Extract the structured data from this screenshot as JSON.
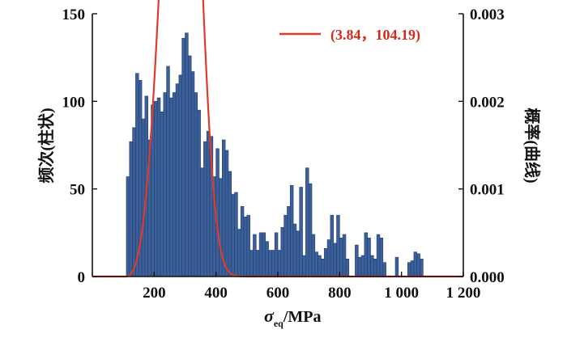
{
  "chart_data": {
    "type": "bar",
    "subtype": "histogram-with-fitted-curve",
    "x_axis": {
      "label_symbol": "σ",
      "label_subscript": "eq",
      "label_unit": "/MPa",
      "range": [
        0,
        1200
      ],
      "ticks": [
        200,
        400,
        600,
        800,
        1000,
        1200
      ],
      "tick_labels": [
        "200",
        "400",
        "600",
        "800",
        "1 000",
        "1 200"
      ]
    },
    "y_left": {
      "label": "频次(柱状)",
      "range": [
        0,
        150
      ],
      "ticks": [
        0,
        50,
        100,
        150
      ],
      "tick_labels": [
        "0",
        "50",
        "100",
        "150"
      ]
    },
    "y_right": {
      "label": "概率(曲线)",
      "range": [
        0,
        0.003
      ],
      "ticks": [
        0,
        0.001,
        0.002,
        0.003
      ],
      "tick_labels": [
        "0.000",
        "0.001",
        "0.002",
        "0.003"
      ]
    },
    "histogram": {
      "color": "#3a5f99",
      "edge_color": "#22406f",
      "bin_width": 10,
      "bins": [
        {
          "x": 115,
          "y": 57
        },
        {
          "x": 125,
          "y": 77
        },
        {
          "x": 135,
          "y": 85
        },
        {
          "x": 145,
          "y": 116
        },
        {
          "x": 155,
          "y": 112
        },
        {
          "x": 165,
          "y": 90
        },
        {
          "x": 175,
          "y": 103
        },
        {
          "x": 185,
          "y": 78
        },
        {
          "x": 195,
          "y": 98
        },
        {
          "x": 205,
          "y": 100
        },
        {
          "x": 215,
          "y": 102
        },
        {
          "x": 225,
          "y": 94
        },
        {
          "x": 235,
          "y": 105
        },
        {
          "x": 245,
          "y": 120
        },
        {
          "x": 255,
          "y": 102
        },
        {
          "x": 265,
          "y": 105
        },
        {
          "x": 275,
          "y": 110
        },
        {
          "x": 285,
          "y": 115
        },
        {
          "x": 295,
          "y": 136
        },
        {
          "x": 305,
          "y": 139
        },
        {
          "x": 315,
          "y": 126
        },
        {
          "x": 325,
          "y": 117
        },
        {
          "x": 335,
          "y": 105
        },
        {
          "x": 345,
          "y": 95
        },
        {
          "x": 355,
          "y": 62
        },
        {
          "x": 365,
          "y": 77
        },
        {
          "x": 375,
          "y": 83
        },
        {
          "x": 385,
          "y": 80
        },
        {
          "x": 395,
          "y": 57
        },
        {
          "x": 405,
          "y": 73
        },
        {
          "x": 415,
          "y": 56
        },
        {
          "x": 425,
          "y": 78
        },
        {
          "x": 435,
          "y": 72
        },
        {
          "x": 445,
          "y": 60
        },
        {
          "x": 455,
          "y": 47
        },
        {
          "x": 465,
          "y": 48
        },
        {
          "x": 475,
          "y": 27
        },
        {
          "x": 485,
          "y": 40
        },
        {
          "x": 495,
          "y": 34
        },
        {
          "x": 505,
          "y": 35
        },
        {
          "x": 515,
          "y": 15
        },
        {
          "x": 525,
          "y": 24
        },
        {
          "x": 535,
          "y": 15
        },
        {
          "x": 545,
          "y": 25
        },
        {
          "x": 555,
          "y": 25
        },
        {
          "x": 565,
          "y": 20
        },
        {
          "x": 575,
          "y": 15
        },
        {
          "x": 585,
          "y": 15
        },
        {
          "x": 595,
          "y": 25
        },
        {
          "x": 605,
          "y": 15
        },
        {
          "x": 615,
          "y": 28
        },
        {
          "x": 625,
          "y": 35
        },
        {
          "x": 635,
          "y": 40
        },
        {
          "x": 645,
          "y": 52
        },
        {
          "x": 655,
          "y": 30
        },
        {
          "x": 665,
          "y": 26
        },
        {
          "x": 675,
          "y": 51
        },
        {
          "x": 685,
          "y": 12
        },
        {
          "x": 695,
          "y": 62
        },
        {
          "x": 705,
          "y": 53
        },
        {
          "x": 715,
          "y": 24
        },
        {
          "x": 725,
          "y": 14
        },
        {
          "x": 735,
          "y": 12
        },
        {
          "x": 745,
          "y": 10
        },
        {
          "x": 755,
          "y": 16
        },
        {
          "x": 765,
          "y": 21
        },
        {
          "x": 775,
          "y": 35
        },
        {
          "x": 785,
          "y": 19
        },
        {
          "x": 795,
          "y": 35
        },
        {
          "x": 805,
          "y": 22
        },
        {
          "x": 815,
          "y": 24
        },
        {
          "x": 825,
          "y": 10
        },
        {
          "x": 855,
          "y": 18
        },
        {
          "x": 865,
          "y": 11
        },
        {
          "x": 875,
          "y": 12
        },
        {
          "x": 885,
          "y": 25
        },
        {
          "x": 895,
          "y": 22
        },
        {
          "x": 905,
          "y": 12
        },
        {
          "x": 915,
          "y": 10
        },
        {
          "x": 925,
          "y": 24
        },
        {
          "x": 935,
          "y": 22
        },
        {
          "x": 945,
          "y": 8
        },
        {
          "x": 985,
          "y": 11
        },
        {
          "x": 1025,
          "y": 8
        },
        {
          "x": 1035,
          "y": 9
        },
        {
          "x": 1045,
          "y": 14
        },
        {
          "x": 1055,
          "y": 13
        },
        {
          "x": 1065,
          "y": 10
        }
      ]
    },
    "curve": {
      "type": "weibull-pdf",
      "shape": 3.84,
      "location": 104.19,
      "scale": 200.8,
      "color": "#e03a2a",
      "legend_label": "(3.84，104.19)",
      "legend_position": "top-right"
    }
  }
}
